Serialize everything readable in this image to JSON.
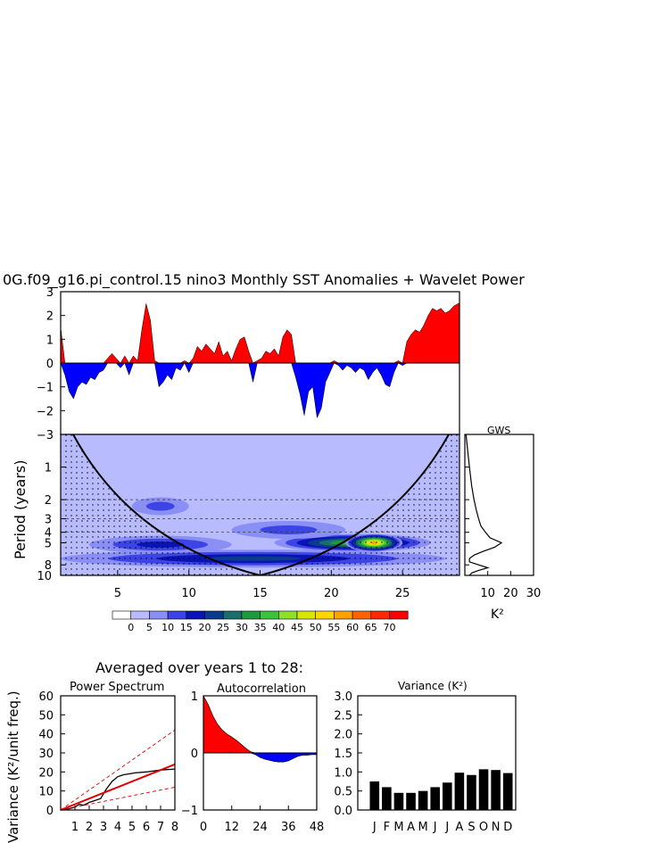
{
  "title": "0G.f09_g16.pi_control.15 nino3 Monthly SST Anomalies + Wavelet Power",
  "averaged_title": "Averaged over years 1 to 28:",
  "gws_label": "GWS",
  "k2_label": "K²",
  "colors": {
    "positive": "#ff0000",
    "negative": "#0000ff",
    "wavelet_base": "#b8bcff",
    "palette": [
      "#ffffff",
      "#b8bcff",
      "#8a8ff5",
      "#3c44e6",
      "#0a14b4",
      "#0b3c8c",
      "#1b6e6e",
      "#1f9a3c",
      "#3cc33c",
      "#8ce02a",
      "#d7e600",
      "#ffd700",
      "#ffa200",
      "#ff6400",
      "#ff2a00",
      "#ff0000"
    ]
  },
  "colorbar_labels": [
    "0",
    "5",
    "10",
    "15",
    "20",
    "25",
    "30",
    "35",
    "40",
    "45",
    "50",
    "55",
    "60",
    "65",
    "70"
  ],
  "chart_data": [
    {
      "type": "area",
      "name": "sst_anomalies",
      "ylim": [
        -3,
        3
      ],
      "yticks": [
        "3",
        "2",
        "1",
        "0",
        "−1",
        "−2",
        "−3"
      ],
      "xlim": [
        1,
        29
      ],
      "x": [
        1.0,
        1.3,
        1.6,
        1.9,
        2.2,
        2.5,
        2.8,
        3.1,
        3.4,
        3.7,
        4.0,
        4.3,
        4.6,
        4.9,
        5.2,
        5.5,
        5.8,
        6.1,
        6.4,
        6.7,
        7.0,
        7.3,
        7.6,
        7.9,
        8.2,
        8.5,
        8.8,
        9.1,
        9.4,
        9.7,
        10.0,
        10.3,
        10.6,
        10.9,
        11.2,
        11.5,
        11.8,
        12.1,
        12.4,
        12.7,
        13.0,
        13.3,
        13.6,
        13.9,
        14.2,
        14.5,
        14.8,
        15.1,
        15.4,
        15.7,
        16.0,
        16.3,
        16.6,
        16.9,
        17.2,
        17.5,
        17.8,
        18.1,
        18.4,
        18.7,
        19.0,
        19.3,
        19.6,
        19.9,
        20.2,
        20.5,
        20.8,
        21.1,
        21.4,
        21.7,
        22.0,
        22.3,
        22.6,
        22.9,
        23.2,
        23.5,
        23.8,
        24.1,
        24.4,
        24.7,
        25.0,
        25.3,
        25.6,
        25.9,
        26.2,
        26.5,
        26.8,
        27.1,
        27.4,
        27.7,
        28.0,
        28.3,
        28.6,
        28.9,
        29.0
      ],
      "values": [
        1.5,
        -0.5,
        -1.2,
        -1.5,
        -1.0,
        -0.8,
        -0.9,
        -0.6,
        -0.7,
        -0.4,
        -0.3,
        0.2,
        0.4,
        0.2,
        -0.2,
        0.3,
        -0.5,
        0.3,
        0.1,
        1.4,
        2.5,
        1.8,
        0.1,
        -1.0,
        -0.8,
        -0.5,
        -0.7,
        -0.2,
        -0.3,
        0.1,
        -0.4,
        0.2,
        0.7,
        0.5,
        0.8,
        0.6,
        0.4,
        0.9,
        0.3,
        0.5,
        0.1,
        0.6,
        1.0,
        1.1,
        0.5,
        -0.8,
        0.1,
        0.2,
        0.5,
        0.4,
        0.6,
        0.3,
        1.1,
        1.4,
        1.2,
        -0.6,
        -1.3,
        -2.2,
        -1.2,
        -1.0,
        -2.3,
        -1.9,
        -0.8,
        -0.4,
        0.1,
        -0.1,
        -0.3,
        -0.1,
        -0.2,
        -0.4,
        -0.2,
        -0.3,
        -0.7,
        -0.4,
        -0.2,
        -0.5,
        -0.9,
        -1.0,
        -0.4,
        0.1,
        -0.1,
        0.9,
        1.2,
        1.4,
        1.3,
        1.6,
        2.0,
        2.3,
        2.2,
        2.3,
        2.1,
        2.2,
        2.4,
        2.5,
        2.5
      ]
    },
    {
      "type": "heatmap",
      "name": "wavelet_power",
      "xlabel_values": [
        "5",
        "10",
        "15",
        "20",
        "25"
      ],
      "xticks": [
        5,
        10,
        15,
        20,
        25
      ],
      "xlim": [
        1,
        29
      ],
      "ylabel": "Period (years)",
      "yticks": [
        "1",
        "2",
        "3",
        "4",
        "5",
        "8",
        "10"
      ],
      "ytick_values": [
        1,
        2,
        3,
        4,
        5,
        8,
        10
      ],
      "ylim": [
        0.5,
        10
      ],
      "significance_periods": [
        2,
        3,
        4
      ],
      "levels": [
        0,
        5,
        10,
        15,
        20,
        25,
        30,
        35,
        40,
        45,
        50,
        55,
        60,
        65,
        70
      ],
      "features": [
        {
          "x": [
            3,
            13
          ],
          "period": 5.2,
          "level": 15
        },
        {
          "x": [
            16,
            27
          ],
          "period": 5.0,
          "level": 35
        },
        {
          "x": [
            21,
            25
          ],
          "period": 5.0,
          "level": 55
        },
        {
          "x": [
            1,
            28
          ],
          "period": 7.0,
          "level": 20
        },
        {
          "x": [
            6,
            10
          ],
          "period": 2.3,
          "level": 10
        },
        {
          "x": [
            13,
            21
          ],
          "period": 3.8,
          "level": 10
        }
      ]
    },
    {
      "type": "line",
      "name": "global_wavelet_spectrum",
      "title": "GWS",
      "xlabel": "K²",
      "xticks": [
        "10",
        "20",
        "30"
      ],
      "xlim": [
        0,
        30
      ],
      "period": [
        0.5,
        1,
        1.5,
        2,
        2.5,
        3,
        3.5,
        4,
        4.5,
        5,
        5.5,
        6,
        6.5,
        7,
        7.5,
        8,
        8.5,
        9,
        9.5,
        10
      ],
      "values": [
        0.5,
        2,
        3,
        4,
        5,
        6,
        7,
        9,
        11,
        16,
        13,
        8,
        4,
        2,
        2,
        6,
        10,
        6,
        3,
        2
      ]
    },
    {
      "type": "line",
      "name": "power_spectrum",
      "title": "Power Spectrum",
      "ylabel": "Variance (K²/unit freq.)",
      "xticks": [
        "1",
        "2",
        "3",
        "4",
        "5",
        "6",
        "7",
        "8"
      ],
      "xlim": [
        0,
        8
      ],
      "yticks": [
        "0",
        "10",
        "20",
        "30",
        "40",
        "50",
        "60"
      ],
      "ylim": [
        0,
        60
      ],
      "series": [
        {
          "x": [
            0,
            0.5,
            1,
            1.3,
            1.6,
            2,
            2.4,
            2.8,
            3.2,
            3.6,
            4,
            4.4,
            4.8,
            5.2,
            6,
            7,
            8
          ],
          "values": [
            0,
            0.5,
            1.5,
            3,
            2.5,
            4,
            5,
            6,
            11,
            15,
            17.5,
            18.5,
            19,
            19.5,
            20,
            21,
            21.5
          ]
        },
        {
          "x": [
            0,
            8
          ],
          "values": [
            0,
            24
          ]
        },
        {
          "x": [
            0,
            8
          ],
          "values": [
            0,
            42
          ]
        },
        {
          "x": [
            0,
            8
          ],
          "values": [
            0,
            12
          ]
        }
      ]
    },
    {
      "type": "area",
      "name": "autocorrelation",
      "title": "Autocorrelation",
      "xticks": [
        "0",
        "12",
        "24",
        "36",
        "48"
      ],
      "xlim": [
        0,
        48
      ],
      "yticks": [
        "1",
        "0",
        "−1"
      ],
      "ylim": [
        -1,
        1
      ],
      "x": [
        0,
        2,
        4,
        6,
        8,
        10,
        12,
        14,
        16,
        18,
        20,
        22,
        24,
        26,
        28,
        30,
        32,
        34,
        36,
        38,
        40,
        42,
        44,
        46,
        48
      ],
      "values": [
        1.0,
        0.85,
        0.65,
        0.5,
        0.4,
        0.33,
        0.28,
        0.22,
        0.15,
        0.08,
        0.02,
        -0.03,
        -0.08,
        -0.11,
        -0.13,
        -0.15,
        -0.16,
        -0.16,
        -0.14,
        -0.1,
        -0.06,
        -0.04,
        -0.04,
        -0.03,
        -0.03
      ]
    },
    {
      "type": "bar",
      "name": "monthly_variance",
      "title": "Variance (K²)",
      "categories": [
        "J",
        "F",
        "M",
        "A",
        "M",
        "J",
        "J",
        "A",
        "S",
        "O",
        "N",
        "D"
      ],
      "values": [
        0.75,
        0.6,
        0.45,
        0.45,
        0.5,
        0.6,
        0.72,
        0.98,
        0.92,
        1.07,
        1.05,
        0.97
      ],
      "yticks": [
        "3.0",
        "2.5",
        "2.0",
        "1.5",
        "1.0",
        "0.5",
        "0.0"
      ],
      "ylim": [
        0,
        3
      ]
    }
  ]
}
